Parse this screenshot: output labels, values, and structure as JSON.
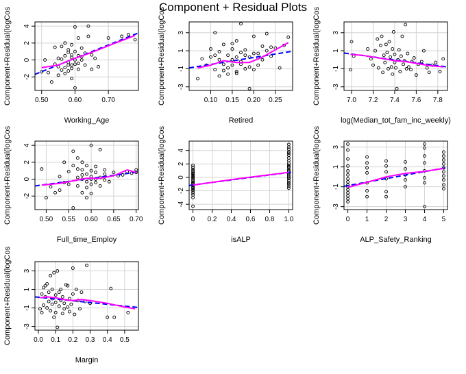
{
  "title": "Component + Residual Plots",
  "colors": {
    "fit_line": "#0000ff",
    "smooth_line": "#ff00ff",
    "points": "#000000",
    "grid": "#d3d3d3",
    "box": "#000000"
  },
  "chart_data": [
    {
      "type": "scatter",
      "xlabel": "Working_Age",
      "ylabel": "Component+Residual(logCos",
      "xlim": [
        0.48,
        0.79
      ],
      "ylim": [
        -3.6,
        4.5
      ],
      "xticks": [
        "0.50",
        "0.60",
        "0.70"
      ],
      "xtick_values": [
        0.5,
        0.6,
        0.7
      ],
      "yticks": [
        "-2",
        "0",
        "2",
        "4"
      ],
      "ytick_values": [
        -2,
        0,
        2,
        4
      ],
      "grid": true,
      "x": [
        0.5,
        0.51,
        0.52,
        0.53,
        0.54,
        0.54,
        0.55,
        0.55,
        0.55,
        0.56,
        0.56,
        0.56,
        0.57,
        0.57,
        0.57,
        0.57,
        0.58,
        0.58,
        0.58,
        0.58,
        0.58,
        0.59,
        0.59,
        0.59,
        0.59,
        0.59,
        0.59,
        0.6,
        0.6,
        0.6,
        0.6,
        0.6,
        0.61,
        0.61,
        0.61,
        0.61,
        0.62,
        0.62,
        0.62,
        0.63,
        0.63,
        0.64,
        0.64,
        0.65,
        0.65,
        0.66,
        0.67,
        0.7,
        0.74,
        0.76,
        0.78
      ],
      "y": [
        -1.4,
        0.0,
        -1.5,
        -2.6,
        1.5,
        -0.5,
        -1.8,
        0.2,
        -0.8,
        -1.2,
        1.6,
        0.1,
        0.5,
        -0.9,
        -1.6,
        2.0,
        0.9,
        -0.3,
        -0.6,
        1.2,
        -1.3,
        0.3,
        -0.6,
        0.6,
        -1.0,
        1.8,
        -2.2,
        0.0,
        3.9,
        -0.5,
        1.0,
        -3.3,
        0.5,
        -0.4,
        2.6,
        -1.1,
        1.4,
        0.4,
        0.0,
        -0.6,
        0.8,
        4.0,
        2.8,
        -1.1,
        0.6,
        0.2,
        -0.8,
        2.6,
        2.8,
        3.0,
        2.4
      ],
      "fit": {
        "x": [
          0.48,
          0.79
        ],
        "y": [
          -1.7,
          3.2
        ]
      },
      "smooth": {
        "x": [
          0.5,
          0.55,
          0.58,
          0.6,
          0.63,
          0.67,
          0.72,
          0.78
        ],
        "y": [
          -0.9,
          -0.6,
          -0.1,
          0.2,
          0.6,
          1.2,
          2.0,
          2.9
        ]
      }
    },
    {
      "type": "scatter",
      "xlabel": "Retired",
      "ylabel": "Component+Residual(logCos",
      "xlim": [
        0.05,
        0.29
      ],
      "ylim": [
        -3.4,
        4.2
      ],
      "xticks": [
        "0.10",
        "0.15",
        "0.20",
        "0.25"
      ],
      "xtick_values": [
        0.1,
        0.15,
        0.2,
        0.25
      ],
      "yticks": [
        "-3",
        "-1",
        "1",
        "3"
      ],
      "ytick_values": [
        -3,
        -1,
        1,
        3
      ],
      "grid": true,
      "x": [
        0.07,
        0.08,
        0.09,
        0.1,
        0.1,
        0.11,
        0.11,
        0.11,
        0.12,
        0.12,
        0.12,
        0.13,
        0.13,
        0.13,
        0.14,
        0.14,
        0.14,
        0.15,
        0.15,
        0.15,
        0.15,
        0.16,
        0.16,
        0.16,
        0.16,
        0.17,
        0.17,
        0.17,
        0.17,
        0.18,
        0.18,
        0.18,
        0.19,
        0.19,
        0.19,
        0.2,
        0.2,
        0.2,
        0.21,
        0.21,
        0.21,
        0.22,
        0.22,
        0.23,
        0.23,
        0.24,
        0.24,
        0.25,
        0.26,
        0.27,
        0.28
      ],
      "y": [
        -2.1,
        0.1,
        -0.6,
        1.2,
        0.3,
        3.0,
        -1.1,
        0.5,
        0.9,
        -1.8,
        0.0,
        -0.5,
        1.7,
        -1.2,
        0.5,
        -0.9,
        -1.6,
        0.0,
        1.2,
        -0.6,
        1.8,
        2.1,
        -1.3,
        0.3,
        -1.5,
        -0.5,
        4.0,
        0.8,
        -0.2,
        0.5,
        -1.0,
        1.1,
        -3.2,
        -0.8,
        0.3,
        0.7,
        -1.1,
        2.6,
        -0.6,
        0.2,
        0.7,
        0.0,
        1.5,
        2.9,
        1.0,
        1.4,
        0.4,
        1.3,
        -0.9,
        1.6,
        2.5
      ],
      "fit": {
        "x": [
          0.05,
          0.29
        ],
        "y": [
          -0.9,
          0.95
        ]
      },
      "smooth": {
        "x": [
          0.07,
          0.1,
          0.13,
          0.16,
          0.19,
          0.22,
          0.25,
          0.28
        ],
        "y": [
          -0.9,
          -0.6,
          -0.1,
          -0.3,
          -0.3,
          0.3,
          1.1,
          1.9
        ]
      }
    },
    {
      "type": "scatter",
      "xlabel": "log(Median_tot_fam_inc_weekly)",
      "ylabel": "Component+Residual(logCos",
      "xlim": [
        6.93,
        7.89
      ],
      "ylim": [
        -3.4,
        4.2
      ],
      "xticks": [
        "7.0",
        "7.2",
        "7.4",
        "7.6",
        "7.8"
      ],
      "xtick_values": [
        7.0,
        7.2,
        7.4,
        7.6,
        7.8
      ],
      "yticks": [
        "-3",
        "-1",
        "1",
        "3"
      ],
      "ytick_values": [
        -3,
        -1,
        1,
        3
      ],
      "grid": true,
      "x": [
        6.99,
        7.0,
        7.02,
        7.15,
        7.18,
        7.2,
        7.22,
        7.24,
        7.25,
        7.27,
        7.28,
        7.29,
        7.3,
        7.31,
        7.32,
        7.33,
        7.34,
        7.35,
        7.36,
        7.37,
        7.38,
        7.38,
        7.39,
        7.4,
        7.4,
        7.41,
        7.42,
        7.43,
        7.44,
        7.45,
        7.46,
        7.47,
        7.48,
        7.49,
        7.5,
        7.51,
        7.52,
        7.53,
        7.55,
        7.56,
        7.58,
        7.6,
        7.62,
        7.65,
        7.67,
        7.7,
        7.72,
        7.75,
        7.78,
        7.82,
        7.85
      ],
      "y": [
        -1.1,
        2.0,
        0.4,
        1.2,
        0.1,
        -0.6,
        1.0,
        2.3,
        -0.9,
        1.6,
        2.6,
        -1.4,
        0.5,
        -0.3,
        1.7,
        0.8,
        -1.0,
        2.0,
        0.3,
        -0.8,
        1.2,
        -1.6,
        3.1,
        -0.3,
        0.6,
        -0.9,
        -3.2,
        0.0,
        1.1,
        -1.3,
        0.4,
        2.6,
        -0.5,
        -0.1,
        3.9,
        -1.0,
        0.7,
        -0.8,
        -1.1,
        -0.2,
        0.2,
        -1.7,
        -0.5,
        -0.2,
        1.0,
        -0.9,
        -1.4,
        -0.6,
        -0.3,
        -1.3,
        0.1
      ],
      "fit": {
        "x": [
          6.93,
          7.89
        ],
        "y": [
          0.75,
          -0.8
        ]
      },
      "smooth": {
        "x": [
          6.99,
          7.1,
          7.2,
          7.3,
          7.4,
          7.5,
          7.6,
          7.7,
          7.85
        ],
        "y": [
          0.6,
          0.5,
          0.3,
          0.1,
          -0.1,
          -0.2,
          -0.4,
          -0.6,
          -0.8
        ]
      }
    },
    {
      "type": "scatter",
      "xlabel": "Full_time_Employ",
      "ylabel": "Component+Residual(logCos",
      "xlim": [
        0.475,
        0.705
      ],
      "ylim": [
        -3.6,
        4.5
      ],
      "xticks": [
        "0.50",
        "0.55",
        "0.60",
        "0.65",
        "0.70"
      ],
      "xtick_values": [
        0.5,
        0.55,
        0.6,
        0.65,
        0.7
      ],
      "yticks": [
        "-2",
        "0",
        "2",
        "4"
      ],
      "ytick_values": [
        -2,
        0,
        2,
        4
      ],
      "grid": true,
      "x": [
        0.49,
        0.5,
        0.51,
        0.52,
        0.53,
        0.53,
        0.54,
        0.54,
        0.55,
        0.55,
        0.56,
        0.56,
        0.56,
        0.57,
        0.57,
        0.57,
        0.57,
        0.58,
        0.58,
        0.58,
        0.58,
        0.58,
        0.59,
        0.59,
        0.59,
        0.59,
        0.59,
        0.6,
        0.6,
        0.6,
        0.6,
        0.6,
        0.6,
        0.61,
        0.61,
        0.61,
        0.61,
        0.62,
        0.62,
        0.62,
        0.63,
        0.63,
        0.63,
        0.64,
        0.65,
        0.66,
        0.67,
        0.68,
        0.69,
        0.7,
        0.7
      ],
      "y": [
        1.2,
        -2.2,
        -0.9,
        -1.6,
        0.3,
        -1.3,
        2.0,
        -0.4,
        -0.6,
        0.9,
        3.3,
        1.6,
        -3.4,
        2.5,
        0.2,
        -0.8,
        1.2,
        1.1,
        0.0,
        -1.6,
        2.0,
        0.5,
        1.6,
        -0.3,
        0.6,
        -1.0,
        -2.2,
        0.0,
        4.0,
        1.0,
        -0.6,
        0.3,
        -1.7,
        0.8,
        -0.4,
        1.5,
        0.0,
        3.5,
        -0.8,
        0.2,
        0.6,
        -0.1,
        1.1,
        -0.3,
        0.8,
        0.4,
        0.5,
        0.9,
        0.7,
        0.8,
        1.1
      ],
      "fit": {
        "x": [
          0.475,
          0.705
        ],
        "y": [
          -0.8,
          0.85
        ]
      },
      "smooth": {
        "x": [
          0.49,
          0.53,
          0.56,
          0.59,
          0.62,
          0.65,
          0.68,
          0.7
        ],
        "y": [
          -0.7,
          -0.5,
          -0.2,
          0.1,
          0.1,
          0.4,
          1.1,
          0.8
        ]
      }
    },
    {
      "type": "scatter",
      "xlabel": "isALP",
      "ylabel": "Component+Residual(logCos",
      "xlim": [
        -0.04,
        1.04
      ],
      "ylim": [
        -4.8,
        5.4
      ],
      "xticks": [
        "0",
        "0.2",
        "0.4",
        "0.6",
        "0.8",
        "1.0"
      ],
      "xtick_values": [
        0,
        0.2,
        0.4,
        0.6,
        0.8,
        1.0
      ],
      "yticks": [
        "-4",
        "-2",
        "0",
        "2",
        "4"
      ],
      "ytick_values": [
        -4,
        -2,
        0,
        2,
        4
      ],
      "grid": true,
      "x": [
        0,
        0,
        0,
        0,
        0,
        0,
        0,
        0,
        0,
        0,
        0,
        0,
        0,
        0,
        0,
        0,
        0,
        0,
        0,
        0,
        0,
        0,
        0,
        0,
        0,
        0,
        1,
        1,
        1,
        1,
        1,
        1,
        1,
        1,
        1,
        1,
        1,
        1,
        1,
        1,
        1,
        1,
        1,
        1,
        1,
        1,
        1,
        1,
        1,
        1,
        1
      ],
      "y": [
        1.8,
        1.5,
        1.2,
        1.0,
        0.8,
        0.5,
        0.3,
        0.1,
        0.0,
        -0.2,
        -0.4,
        -0.6,
        -0.8,
        -1.0,
        -1.2,
        -1.4,
        -1.6,
        -1.8,
        -2.0,
        -2.3,
        -2.6,
        -3.0,
        -4.3,
        0.6,
        -0.9,
        -1.5,
        4.9,
        4.5,
        4.2,
        3.8,
        3.3,
        2.9,
        2.5,
        2.1,
        1.8,
        1.5,
        1.2,
        1.0,
        0.8,
        0.6,
        0.4,
        0.2,
        0.0,
        -0.2,
        -0.5,
        -0.8,
        -1.0,
        -1.3,
        -1.6,
        3.6,
        1.6
      ],
      "fit": {
        "x": [
          -0.04,
          1.04
        ],
        "y": [
          -1.2,
          0.8
        ]
      },
      "smooth": {
        "x": [
          0,
          0.25,
          0.5,
          0.75,
          1.0
        ],
        "y": [
          -1.15,
          -0.65,
          -0.15,
          0.3,
          0.75
        ]
      }
    },
    {
      "type": "scatter",
      "xlabel": "ALP_Safety_Ranking",
      "ylabel": "Component+Residual(logCos",
      "xlim": [
        -0.2,
        5.2
      ],
      "ylim": [
        -3.3,
        3.6
      ],
      "xticks": [
        "0",
        "1",
        "2",
        "3",
        "4",
        "5"
      ],
      "xtick_values": [
        0,
        1,
        2,
        3,
        4,
        5
      ],
      "yticks": [
        "-3",
        "-1",
        "1",
        "3"
      ],
      "ytick_values": [
        -3,
        -1,
        1,
        3
      ],
      "grid": true,
      "x": [
        0,
        0,
        0,
        0,
        0,
        0,
        0,
        0,
        0,
        0,
        0,
        0,
        0,
        0,
        0,
        1,
        1,
        1,
        1,
        1,
        1,
        1,
        2,
        2,
        2,
        2,
        2,
        2,
        3,
        3,
        3,
        3,
        3,
        4,
        4,
        4,
        4,
        4,
        4,
        4,
        4,
        5,
        5,
        5,
        5,
        5,
        5,
        5,
        5,
        5,
        5
      ],
      "y": [
        3.3,
        2.7,
        1.8,
        1.1,
        0.6,
        0.2,
        -0.2,
        -0.5,
        -0.8,
        -1.0,
        -1.3,
        -1.6,
        -1.9,
        -2.2,
        -2.5,
        2.0,
        1.4,
        0.9,
        0.4,
        -0.6,
        -1.4,
        -2.0,
        1.6,
        1.1,
        0.5,
        -0.2,
        -1.5,
        -2.0,
        1.5,
        0.8,
        0.2,
        -0.3,
        -1.0,
        3.3,
        2.9,
        2.1,
        1.4,
        0.6,
        -0.1,
        -0.6,
        -3.0,
        2.5,
        2.1,
        1.7,
        1.3,
        0.9,
        0.5,
        0.1,
        -0.3,
        -0.8,
        -1.2
      ],
      "fit": {
        "x": [
          -0.2,
          5.2
        ],
        "y": [
          -0.95,
          0.95
        ]
      },
      "smooth": {
        "x": [
          0,
          1,
          2,
          3,
          4,
          5
        ],
        "y": [
          -1.05,
          -0.55,
          0.0,
          0.35,
          0.55,
          0.85
        ]
      }
    },
    {
      "type": "scatter",
      "xlabel": "Margin",
      "ylabel": "Component+Residual(logCos",
      "xlim": [
        -0.02,
        0.58
      ],
      "ylim": [
        -3.4,
        4.0
      ],
      "xticks": [
        "0.0",
        "0.1",
        "0.2",
        "0.3",
        "0.4",
        "0.5"
      ],
      "xtick_values": [
        0,
        0.1,
        0.2,
        0.3,
        0.4,
        0.5
      ],
      "yticks": [
        "-3",
        "-1",
        "1",
        "3"
      ],
      "ytick_values": [
        -3,
        -1,
        1,
        3
      ],
      "grid": true,
      "x": [
        0.01,
        0.02,
        0.02,
        0.03,
        0.03,
        0.04,
        0.04,
        0.05,
        0.05,
        0.06,
        0.06,
        0.07,
        0.07,
        0.08,
        0.08,
        0.08,
        0.09,
        0.09,
        0.1,
        0.1,
        0.1,
        0.11,
        0.11,
        0.12,
        0.12,
        0.13,
        0.13,
        0.14,
        0.14,
        0.15,
        0.15,
        0.16,
        0.17,
        0.17,
        0.18,
        0.18,
        0.19,
        0.2,
        0.2,
        0.21,
        0.22,
        0.23,
        0.24,
        0.25,
        0.27,
        0.28,
        0.3,
        0.4,
        0.42,
        0.44,
        0.52
      ],
      "y": [
        -1.1,
        0.5,
        -1.5,
        1.2,
        -0.7,
        1.4,
        0.2,
        -1.0,
        1.6,
        -0.3,
        0.7,
        -1.3,
        2.5,
        0.0,
        -0.6,
        1.0,
        2.8,
        -2.0,
        -0.4,
        0.4,
        -1.5,
        3.0,
        -3.1,
        0.7,
        -0.8,
        -0.2,
        1.0,
        -1.6,
        0.2,
        -0.5,
        -1.1,
        1.5,
        1.4,
        -0.9,
        0.0,
        -1.4,
        -0.6,
        3.3,
        0.5,
        -1.7,
        1.0,
        -0.2,
        -1.1,
        0.7,
        -0.3,
        3.6,
        -0.5,
        -2.0,
        1.1,
        -2.0,
        -1.5
      ],
      "fit": {
        "x": [
          -0.02,
          0.58
        ],
        "y": [
          0.2,
          -0.95
        ]
      },
      "smooth": {
        "x": [
          0.01,
          0.05,
          0.1,
          0.15,
          0.2,
          0.25,
          0.3,
          0.4,
          0.5,
          0.56
        ],
        "y": [
          0.1,
          0.2,
          0.1,
          -0.1,
          -0.2,
          -0.1,
          -0.2,
          -0.5,
          -0.9,
          -1.1
        ]
      }
    }
  ]
}
